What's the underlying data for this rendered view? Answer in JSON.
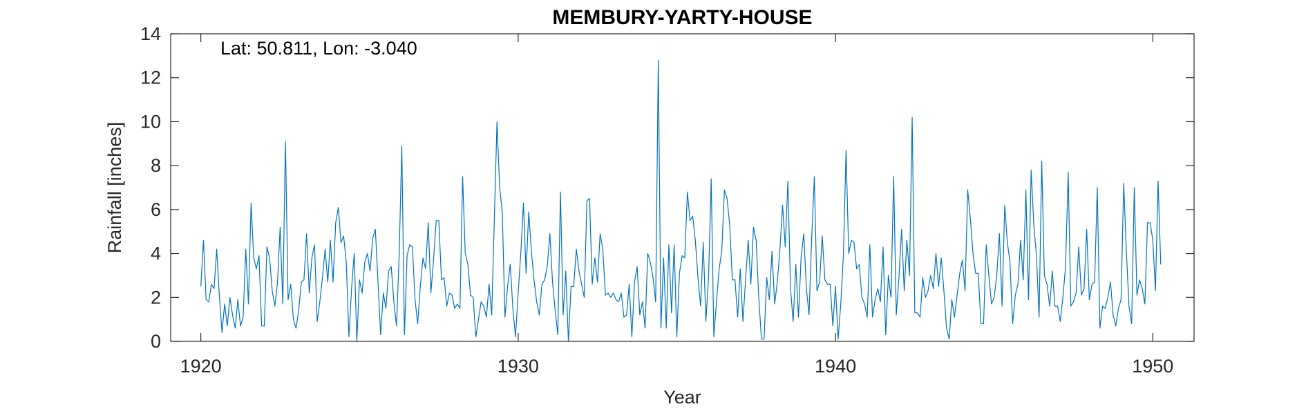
{
  "chart_data": {
    "type": "line",
    "title": "MEMBURY-YARTY-HOUSE",
    "annotation": "Lat: 50.811, Lon: -3.040",
    "xlabel": "Year",
    "ylabel": "Rainfall [inches]",
    "xlim": [
      1919.05,
      1951.3
    ],
    "ylim": [
      0,
      14
    ],
    "xticks": [
      1920,
      1930,
      1940,
      1950
    ],
    "yticks": [
      0,
      2,
      4,
      6,
      8,
      10,
      12,
      14
    ],
    "box": true,
    "grid": false,
    "line_color": "#0072BD",
    "series": [
      {
        "x_start": 1920.0,
        "x_step": 0.083333,
        "values": [
          2.5,
          4.6,
          1.9,
          1.8,
          2.6,
          2.4,
          4.2,
          2.1,
          0.4,
          1.7,
          0.7,
          2.0,
          1.2,
          0.6,
          1.9,
          0.7,
          1.1,
          4.2,
          1.7,
          6.3,
          3.8,
          3.3,
          3.9,
          0.7,
          0.7,
          4.3,
          3.8,
          2.3,
          1.6,
          2.7,
          5.2,
          1.7,
          9.1,
          1.9,
          2.6,
          1.0,
          0.6,
          1.4,
          2.7,
          2.8,
          4.9,
          2.2,
          3.8,
          4.4,
          0.9,
          1.8,
          2.9,
          4.2,
          2.7,
          4.6,
          2.7,
          5.4,
          6.1,
          4.5,
          4.8,
          3.6,
          0.2,
          2.4,
          4.0,
          0.0,
          2.8,
          2.2,
          3.6,
          4.0,
          3.2,
          4.7,
          5.1,
          2.7,
          0.3,
          2.2,
          1.5,
          3.2,
          3.4,
          1.8,
          0.7,
          3.9,
          8.9,
          0.3,
          3.9,
          4.4,
          4.3,
          1.9,
          0.8,
          2.5,
          3.8,
          3.3,
          5.4,
          2.2,
          3.7,
          5.5,
          5.5,
          2.8,
          2.9,
          1.6,
          2.2,
          2.1,
          1.5,
          1.7,
          1.5,
          7.5,
          4.0,
          3.5,
          2.1,
          2.0,
          0.2,
          1.0,
          1.8,
          1.6,
          1.1,
          2.6,
          1.2,
          5.6,
          10.0,
          7.0,
          5.9,
          1.1,
          2.5,
          3.5,
          1.5,
          0.2,
          2.2,
          4.0,
          6.3,
          3.1,
          5.9,
          4.1,
          2.8,
          1.8,
          1.2,
          2.6,
          2.8,
          3.4,
          4.9,
          2.7,
          1.4,
          0.3,
          6.8,
          1.2,
          3.2,
          0.0,
          2.5,
          2.5,
          4.2,
          3.2,
          2.6,
          2.0,
          6.4,
          6.5,
          2.6,
          3.8,
          2.7,
          4.9,
          4.2,
          2.1,
          2.2,
          2.0,
          2.2,
          1.9,
          1.8,
          2.2,
          1.1,
          1.2,
          2.6,
          0.2,
          2.7,
          3.4,
          1.2,
          1.8,
          0.6,
          4.0,
          3.6,
          2.9,
          1.8,
          12.8,
          0.6,
          3.8,
          0.6,
          4.4,
          1.3,
          4.4,
          0.2,
          3.1,
          3.9,
          3.8,
          6.8,
          5.5,
          5.7,
          4.6,
          2.9,
          1.6,
          4.5,
          0.9,
          2.9,
          7.4,
          0.2,
          1.8,
          3.3,
          4.1,
          6.9,
          6.5,
          5.3,
          2.8,
          2.8,
          1.1,
          3.3,
          0.9,
          2.8,
          4.6,
          2.6,
          5.2,
          4.6,
          2.0,
          0.1,
          0.1,
          2.9,
          1.9,
          4.1,
          1.7,
          2.7,
          4.2,
          6.2,
          4.3,
          7.3,
          2.4,
          0.9,
          3.5,
          1.1,
          3.8,
          4.9,
          2.4,
          1.2,
          4.7,
          7.5,
          2.3,
          2.7,
          4.8,
          2.8,
          2.6,
          2.6,
          0.7,
          2.5,
          0.1,
          1.7,
          3.9,
          8.7,
          4.0,
          4.6,
          4.5,
          3.3,
          3.5,
          2.0,
          1.7,
          1.1,
          4.4,
          1.1,
          1.9,
          2.4,
          1.8,
          4.3,
          0.3,
          3.0,
          2.0,
          7.5,
          1.2,
          2.9,
          5.1,
          2.3,
          4.6,
          3.0,
          10.2,
          1.3,
          1.3,
          1.1,
          2.9,
          2.0,
          2.3,
          3.0,
          2.4,
          4.0,
          2.5,
          3.8,
          2.3,
          0.6,
          0.1,
          1.9,
          1.1,
          2.1,
          3.1,
          3.7,
          2.3,
          6.9,
          5.6,
          4.0,
          3.1,
          3.1,
          0.8,
          0.8,
          4.4,
          3.0,
          1.7,
          2.0,
          3.0,
          4.9,
          1.6,
          6.2,
          4.5,
          3.6,
          0.8,
          2.1,
          2.6,
          4.6,
          2.8,
          6.9,
          1.9,
          7.8,
          5.3,
          3.9,
          1.1,
          8.2,
          3.0,
          2.6,
          1.6,
          3.2,
          1.6,
          1.6,
          0.9,
          2.0,
          3.4,
          7.7,
          1.6,
          1.8,
          2.2,
          4.3,
          2.1,
          2.4,
          5.1,
          1.9,
          2.6,
          2.7,
          7.0,
          0.6,
          1.6,
          1.5,
          2.0,
          2.7,
          1.2,
          0.7,
          1.5,
          1.9,
          7.2,
          4.1,
          1.6,
          0.8,
          7.0,
          2.1,
          2.8,
          2.4,
          1.7,
          5.4,
          5.4,
          4.6,
          2.3,
          7.3,
          3.5
        ]
      }
    ]
  }
}
